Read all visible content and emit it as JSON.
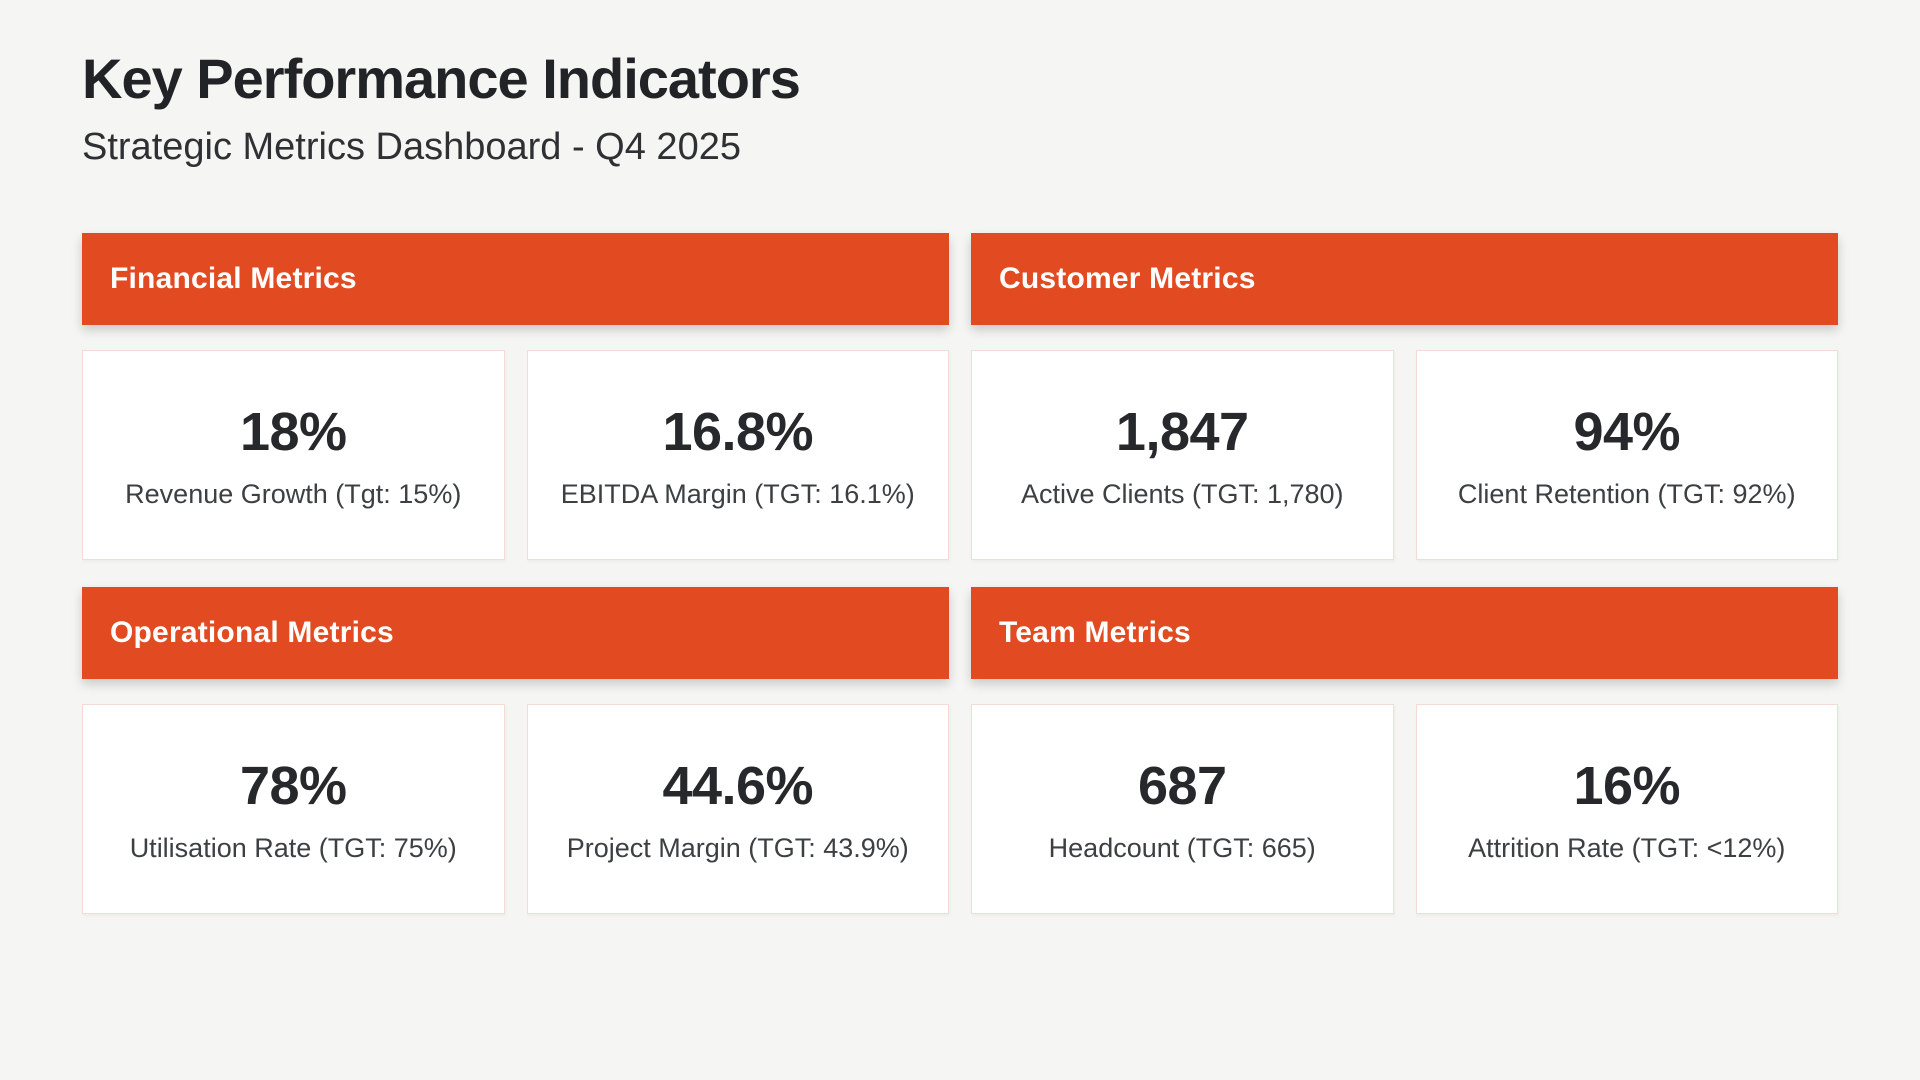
{
  "page": {
    "title": "Key Performance Indicators",
    "subtitle": "Strategic Metrics Dashboard - Q4 2025"
  },
  "colors": {
    "accent": "#E24A21",
    "background": "#F5F5F3",
    "card_border": "#F2DCD4",
    "header_text": "#FFFFFF",
    "text_primary": "#212326",
    "text_secondary": "#3C4043"
  },
  "sections": [
    {
      "title": "Financial Metrics",
      "metrics": [
        {
          "value": "18%",
          "label": "Revenue Growth (Tgt: 15%)"
        },
        {
          "value": "16.8%",
          "label": "EBITDA Margin (TGT: 16.1%)"
        }
      ]
    },
    {
      "title": "Customer Metrics",
      "metrics": [
        {
          "value": "1,847",
          "label": "Active Clients (TGT: 1,780)"
        },
        {
          "value": "94%",
          "label": "Client Retention (TGT: 92%)"
        }
      ]
    },
    {
      "title": "Operational Metrics",
      "metrics": [
        {
          "value": "78%",
          "label": "Utilisation Rate (TGT: 75%)"
        },
        {
          "value": "44.6%",
          "label": "Project Margin (TGT: 43.9%)"
        }
      ]
    },
    {
      "title": "Team Metrics",
      "metrics": [
        {
          "value": "687",
          "label": "Headcount (TGT: 665)"
        },
        {
          "value": "16%",
          "label": "Attrition Rate (TGT: <12%)"
        }
      ]
    }
  ]
}
